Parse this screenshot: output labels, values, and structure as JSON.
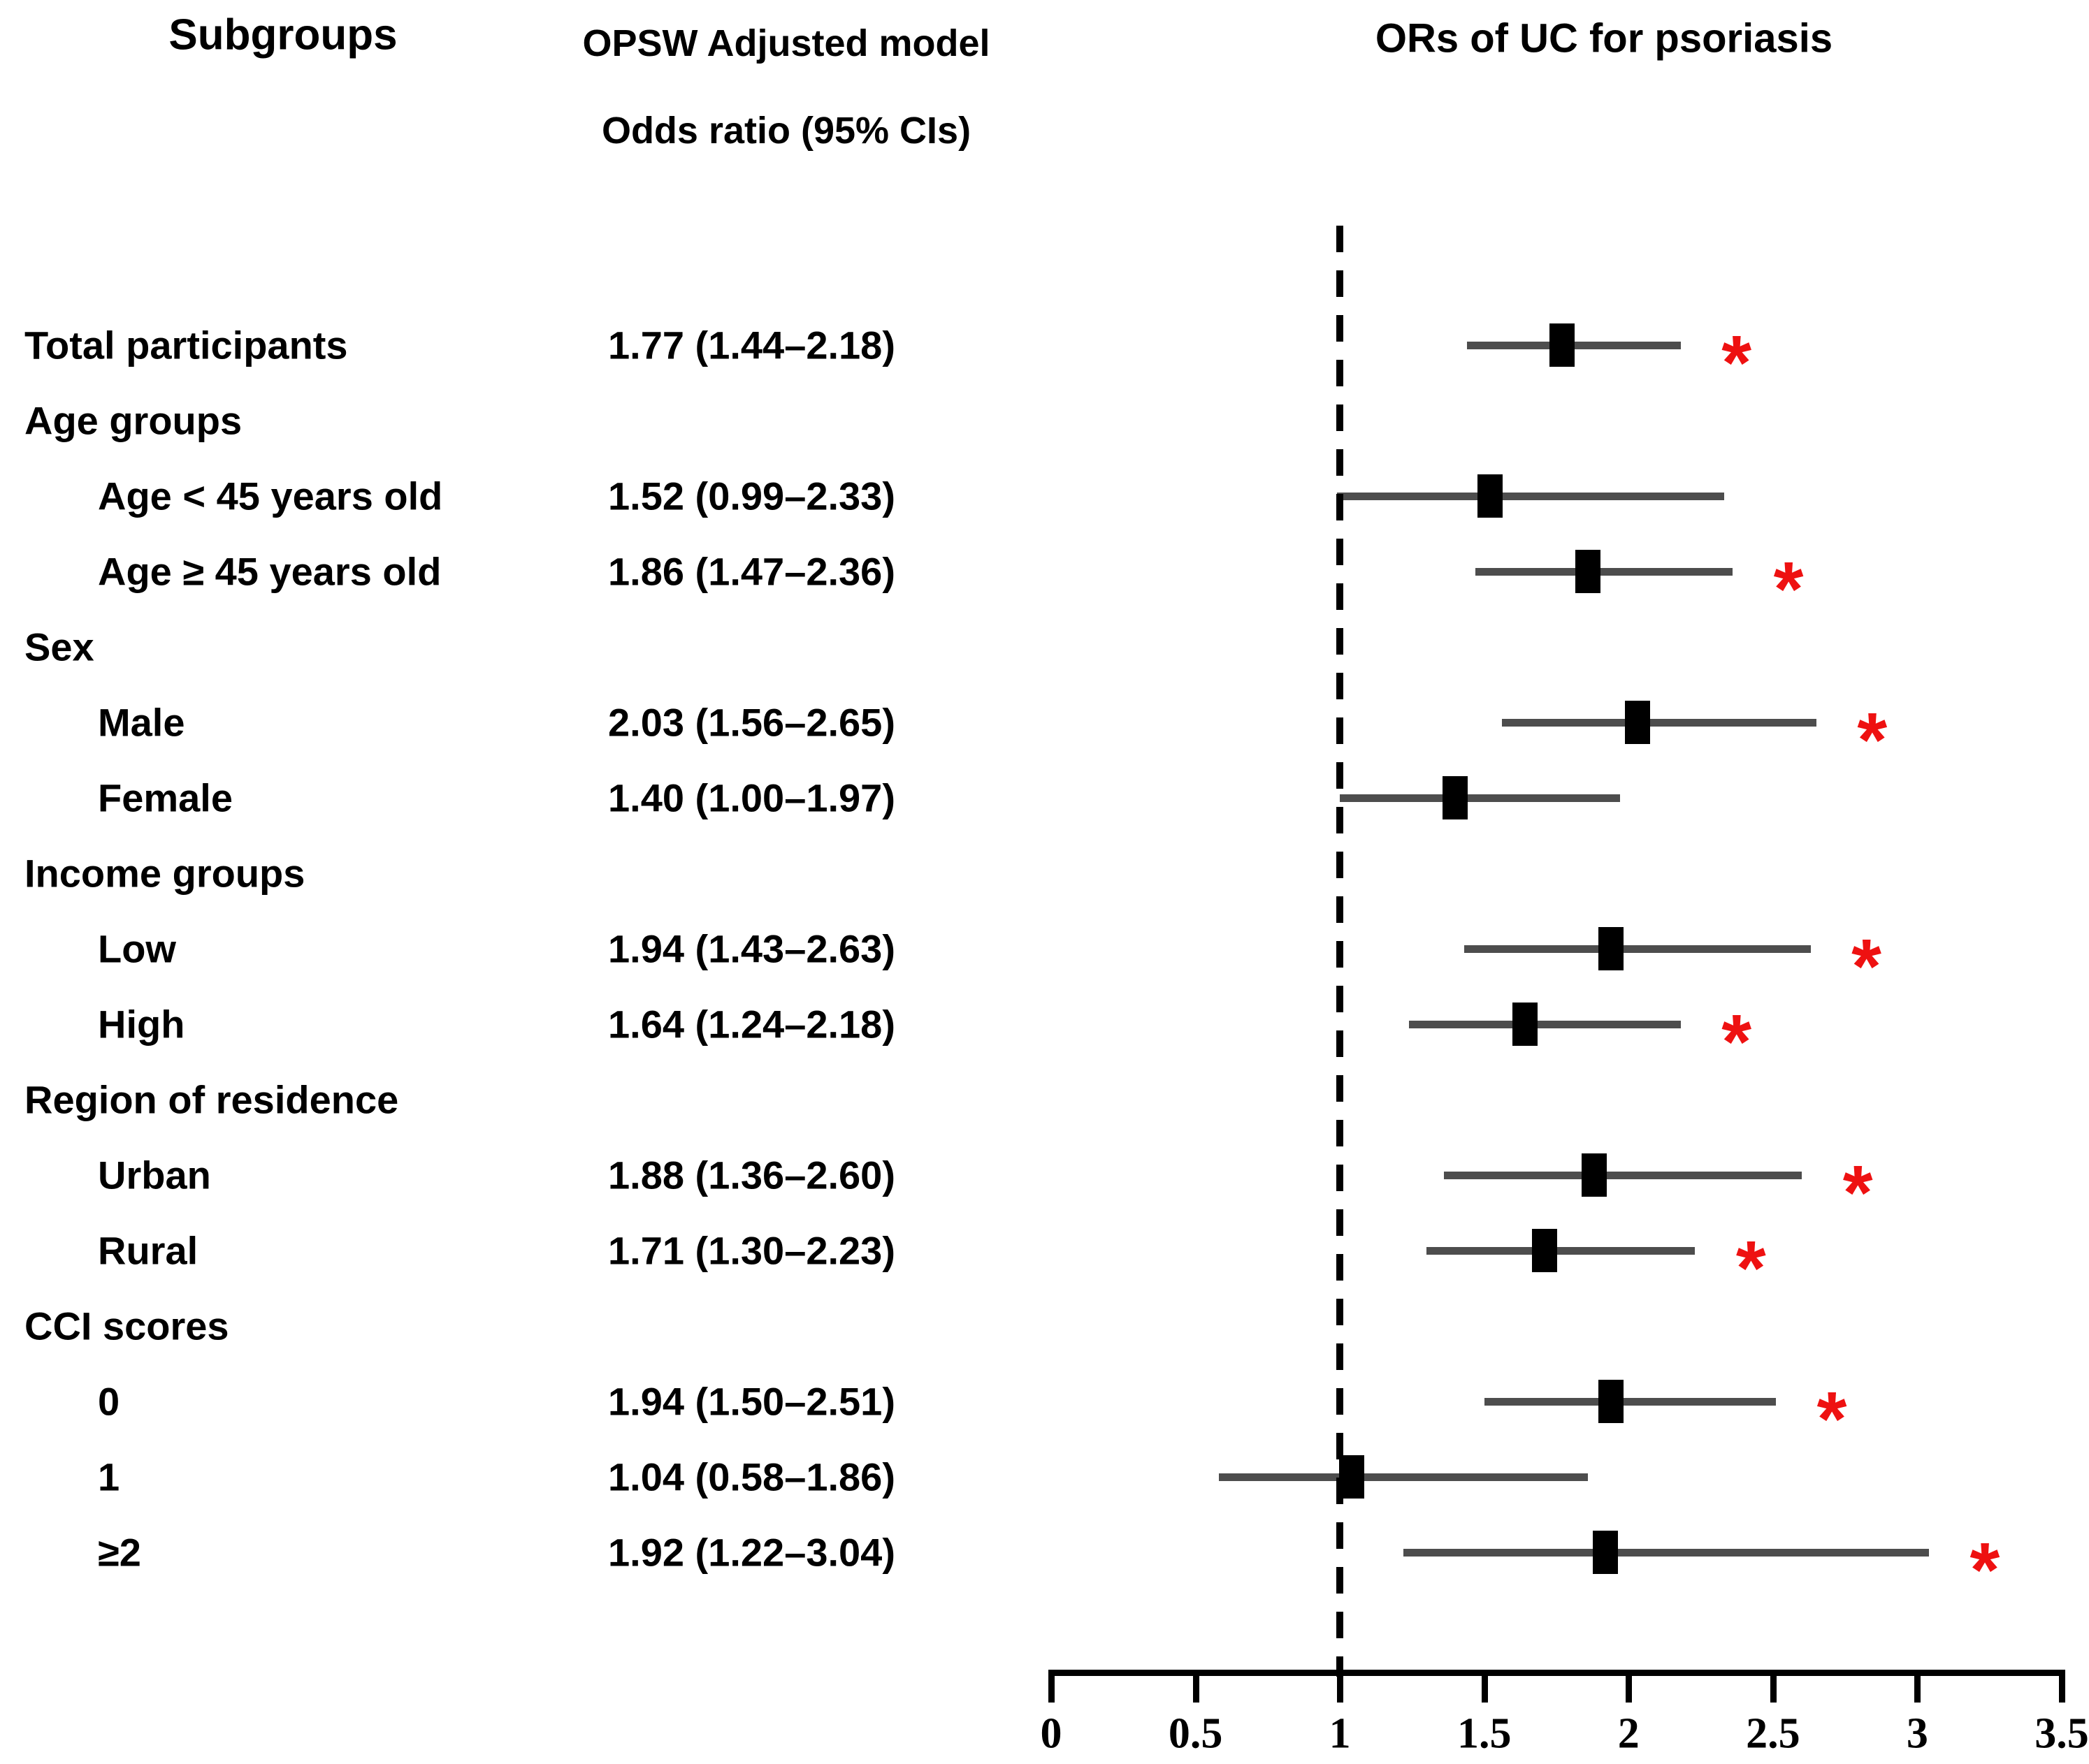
{
  "titles": {
    "subgroups_col": "Subgroups",
    "model_col_line1": "OPSW Adjusted model",
    "model_col_line2": "Odds ratio (95% CIs)",
    "plot_col": "ORs of UC for psoriasis"
  },
  "significance_marker": "*",
  "colors": {
    "significant_marker": "#ee1111",
    "ci_line": "#4d4d4d",
    "or_square": "#000000",
    "text": "#000000"
  },
  "rows": [
    {
      "label": "Total participants",
      "group": false,
      "indent": false,
      "value_text": "1.77 (1.44–2.18)",
      "or": 1.77,
      "ci_low": 1.44,
      "ci_high": 2.18,
      "significant": true
    },
    {
      "label": "Age groups",
      "group": true,
      "indent": false,
      "value_text": null,
      "or": null,
      "ci_low": null,
      "ci_high": null,
      "significant": false
    },
    {
      "label": "Age < 45 years old",
      "group": false,
      "indent": true,
      "value_text": "1.52 (0.99–2.33)",
      "or": 1.52,
      "ci_low": 0.99,
      "ci_high": 2.33,
      "significant": false
    },
    {
      "label": "Age ≥ 45 years old",
      "group": false,
      "indent": true,
      "value_text": "1.86 (1.47–2.36)",
      "or": 1.86,
      "ci_low": 1.47,
      "ci_high": 2.36,
      "significant": true
    },
    {
      "label": "Sex",
      "group": true,
      "indent": false,
      "value_text": null,
      "or": null,
      "ci_low": null,
      "ci_high": null,
      "significant": false
    },
    {
      "label": "Male",
      "group": false,
      "indent": true,
      "value_text": "2.03 (1.56–2.65)",
      "or": 2.03,
      "ci_low": 1.56,
      "ci_high": 2.65,
      "significant": true
    },
    {
      "label": "Female",
      "group": false,
      "indent": true,
      "value_text": "1.40 (1.00–1.97)",
      "or": 1.4,
      "ci_low": 1.0,
      "ci_high": 1.97,
      "significant": false
    },
    {
      "label": "Income groups",
      "group": true,
      "indent": false,
      "value_text": null,
      "or": null,
      "ci_low": null,
      "ci_high": null,
      "significant": false
    },
    {
      "label": "Low",
      "group": false,
      "indent": true,
      "value_text": "1.94 (1.43–2.63)",
      "or": 1.94,
      "ci_low": 1.43,
      "ci_high": 2.63,
      "significant": true
    },
    {
      "label": "High",
      "group": false,
      "indent": true,
      "value_text": "1.64 (1.24–2.18)",
      "or": 1.64,
      "ci_low": 1.24,
      "ci_high": 2.18,
      "significant": true
    },
    {
      "label": "Region of residence",
      "group": true,
      "indent": false,
      "value_text": null,
      "or": null,
      "ci_low": null,
      "ci_high": null,
      "significant": false
    },
    {
      "label": "Urban",
      "group": false,
      "indent": true,
      "value_text": "1.88 (1.36–2.60)",
      "or": 1.88,
      "ci_low": 1.36,
      "ci_high": 2.6,
      "significant": true
    },
    {
      "label": "Rural",
      "group": false,
      "indent": true,
      "value_text": "1.71 (1.30–2.23)",
      "or": 1.71,
      "ci_low": 1.3,
      "ci_high": 2.23,
      "significant": true
    },
    {
      "label": "CCI scores",
      "group": true,
      "indent": false,
      "value_text": null,
      "or": null,
      "ci_low": null,
      "ci_high": null,
      "significant": false
    },
    {
      "label": "0",
      "group": false,
      "indent": true,
      "value_text": "1.94 (1.50–2.51)",
      "or": 1.94,
      "ci_low": 1.5,
      "ci_high": 2.51,
      "significant": true
    },
    {
      "label": "1",
      "group": false,
      "indent": true,
      "value_text": "1.04 (0.58–1.86)",
      "or": 1.04,
      "ci_low": 0.58,
      "ci_high": 1.86,
      "significant": false
    },
    {
      "label": "≥2",
      "group": false,
      "indent": true,
      "value_text": "1.92 (1.22–3.04)",
      "or": 1.92,
      "ci_low": 1.22,
      "ci_high": 3.04,
      "significant": true
    }
  ],
  "chart_data": {
    "type": "scatter",
    "subtype": "forest-plot",
    "title": "ORs of UC for psoriasis",
    "xlabel": "",
    "ylabel": "Subgroups",
    "xlim": [
      0,
      3.5
    ],
    "xticks": [
      0,
      0.5,
      1,
      1.5,
      2,
      2.5,
      3,
      3.5
    ],
    "xtick_labels": [
      "0",
      "0.5",
      "1",
      "1.5",
      "2",
      "2.5",
      "3",
      "3.5"
    ],
    "reference_line_x": 1,
    "grid": false,
    "legend": "none",
    "categories": [
      "Total participants",
      "Age < 45 years old",
      "Age ≥ 45 years old",
      "Male",
      "Female",
      "Low",
      "High",
      "Urban",
      "Rural",
      "0",
      "1",
      "≥2"
    ],
    "series": [
      {
        "name": "OPSW Adjusted model Odds ratio (95% CIs)",
        "or": [
          1.77,
          1.52,
          1.86,
          2.03,
          1.4,
          1.94,
          1.64,
          1.88,
          1.71,
          1.94,
          1.04,
          1.92
        ],
        "ci_low": [
          1.44,
          0.99,
          1.47,
          1.56,
          1.0,
          1.43,
          1.24,
          1.36,
          1.3,
          1.5,
          0.58,
          1.22
        ],
        "ci_high": [
          2.18,
          2.33,
          2.36,
          2.65,
          1.97,
          2.63,
          2.18,
          2.6,
          2.23,
          2.51,
          1.86,
          3.04
        ],
        "significant": [
          true,
          false,
          true,
          true,
          false,
          true,
          true,
          true,
          true,
          true,
          false,
          true
        ]
      }
    ]
  }
}
